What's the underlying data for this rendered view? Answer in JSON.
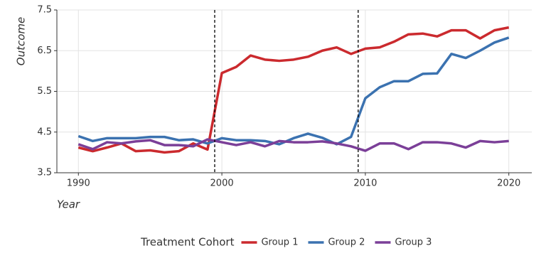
{
  "chart_data": {
    "type": "line",
    "x_label": "Year",
    "y_label": "Outcome",
    "x": [
      1990,
      1991,
      1992,
      1993,
      1994,
      1995,
      1996,
      1997,
      1998,
      1999,
      2000,
      2001,
      2002,
      2003,
      2004,
      2005,
      2006,
      2007,
      2008,
      2009,
      2010,
      2011,
      2012,
      2013,
      2014,
      2015,
      2016,
      2017,
      2018,
      2019,
      2020
    ],
    "series": [
      {
        "name": "Group 1",
        "color": "#cb2a2e",
        "values": [
          4.12,
          4.03,
          4.12,
          4.22,
          4.03,
          4.05,
          4.0,
          4.03,
          4.22,
          4.07,
          5.95,
          6.1,
          6.38,
          6.28,
          6.25,
          6.28,
          6.35,
          6.5,
          6.58,
          6.42,
          6.55,
          6.58,
          6.72,
          6.9,
          6.92,
          6.85,
          7.0,
          7.0,
          6.8,
          7.0,
          7.07
        ]
      },
      {
        "name": "Group 2",
        "color": "#3b72b0",
        "values": [
          4.4,
          4.28,
          4.35,
          4.35,
          4.35,
          4.38,
          4.38,
          4.3,
          4.32,
          4.22,
          4.35,
          4.3,
          4.3,
          4.28,
          4.2,
          4.35,
          4.46,
          4.36,
          4.2,
          4.38,
          5.33,
          5.6,
          5.75,
          5.75,
          5.93,
          5.94,
          6.42,
          6.32,
          6.5,
          6.7,
          6.82
        ]
      },
      {
        "name": "Group 3",
        "color": "#7b3f98",
        "values": [
          4.2,
          4.08,
          4.25,
          4.22,
          4.27,
          4.3,
          4.18,
          4.18,
          4.15,
          4.32,
          4.25,
          4.18,
          4.25,
          4.15,
          4.28,
          4.25,
          4.25,
          4.27,
          4.22,
          4.15,
          4.04,
          4.22,
          4.22,
          4.08,
          4.25,
          4.25,
          4.22,
          4.12,
          4.28,
          4.25,
          4.28
        ]
      }
    ],
    "vlines": [
      1999.5,
      2009.5
    ],
    "xlim": [
      1988.5,
      2021.6
    ],
    "xticks": [
      1990,
      2000,
      2010,
      2020
    ],
    "ylim": [
      3.5,
      7.5
    ],
    "yticks": [
      3.5,
      4.5,
      5.5,
      6.5,
      7.5
    ],
    "grid": true,
    "legend_title": "Treatment Cohort",
    "legend_position": "bottom"
  }
}
